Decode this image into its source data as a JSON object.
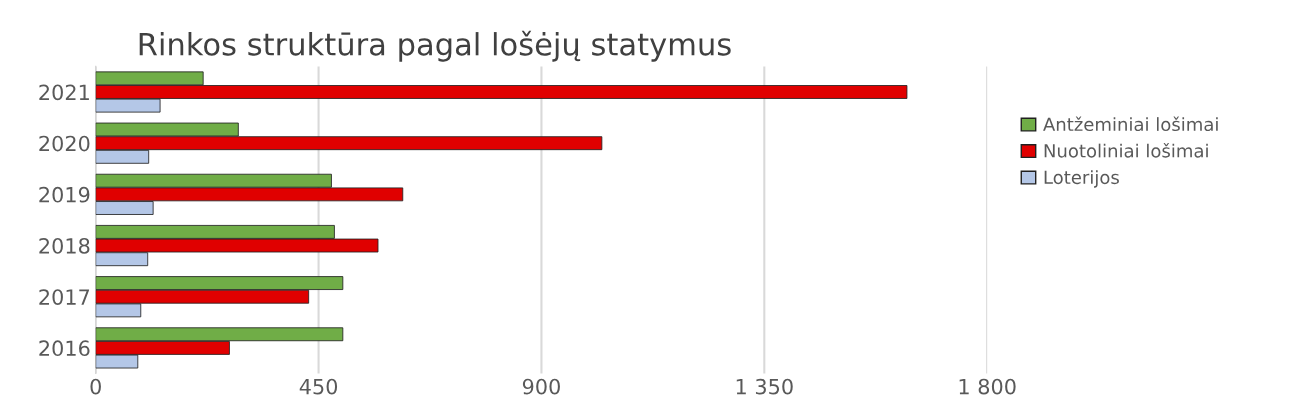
{
  "chart_data": {
    "type": "bar",
    "orientation": "horizontal",
    "title": "Rinkos struktūra pagal lošėjų statymus",
    "categories": [
      "2021",
      "2020",
      "2019",
      "2018",
      "2017",
      "2016"
    ],
    "series": [
      {
        "name": "Antžeminiai lošimai",
        "color": "#70ad47",
        "values": [
          217,
          288,
          476,
          482,
          499,
          499
        ]
      },
      {
        "name": "Nuotoliniai lošimai",
        "color": "#e00000",
        "values": [
          1638,
          1022,
          620,
          570,
          430,
          270
        ]
      },
      {
        "name": "Loterijos",
        "color": "#b4c7e7",
        "values": [
          130,
          107,
          116,
          105,
          91,
          85
        ]
      }
    ],
    "xlim": [
      0,
      1800
    ],
    "xticks": [
      0,
      450,
      900,
      {
        "value": 1350,
        "label": "1 350"
      },
      {
        "value": 1800,
        "label": "1 800"
      }
    ],
    "grid": "x",
    "legend": "right"
  }
}
